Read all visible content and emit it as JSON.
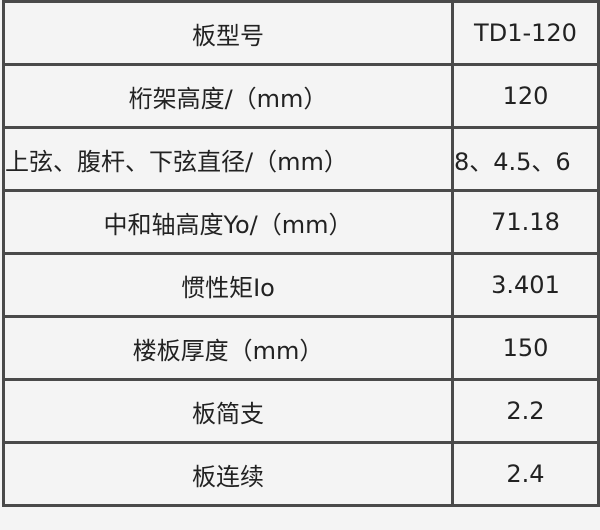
{
  "rows": [
    {
      "label": "板型号",
      "value": "TD1-120"
    },
    {
      "label": "桁架高度/（mm）",
      "value": "120"
    },
    {
      "label": "上弦、腹杆、下弦直径/（mm）",
      "value": "8、4.5、6"
    },
    {
      "label": "中和轴高度Yo/（mm）",
      "value": "71.18"
    },
    {
      "label": "惯性矩Io",
      "value": "3.401"
    },
    {
      "label": "楼板厚度（mm）",
      "value": "150"
    },
    {
      "label": "板简支",
      "value": "2.2"
    },
    {
      "label": "板连续",
      "value": "2.4"
    }
  ]
}
